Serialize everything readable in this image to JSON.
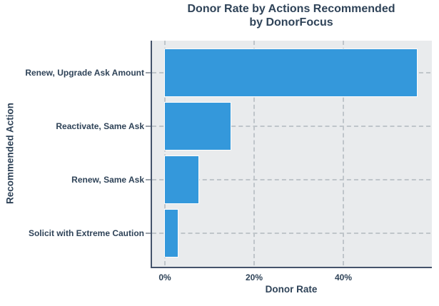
{
  "title": {
    "line1": "Donor Rate by Actions Recommended",
    "line2": "by DonorFocus"
  },
  "chart_data": {
    "type": "bar",
    "orientation": "horizontal",
    "title": "Donor Rate by Actions Recommended by DonorFocus",
    "xlabel": "Donor Rate",
    "ylabel": "Recommended Action",
    "categories": [
      "Renew, Upgrade Ask Amount",
      "Reactivate, Same Ask",
      "Renew, Same Ask",
      "Solicit with Extreme Caution"
    ],
    "values": [
      56.5,
      14.7,
      7.5,
      2.9
    ],
    "unit": "%",
    "x_ticks": [
      {
        "value": 0,
        "label": "0%"
      },
      {
        "value": 20,
        "label": "20%"
      },
      {
        "value": 40,
        "label": "40%"
      }
    ],
    "xlim": [
      0,
      59.4
    ],
    "grid": "dashed",
    "legend": "none"
  },
  "colors": {
    "bar": "#3498db",
    "bar_border": "#fdfdfd",
    "text": "#2f4358",
    "panel_background": "#e9ebed",
    "gridline": "#bfc5ca",
    "axis_line": "#45536b",
    "tick_mark": "#9aa1a9",
    "canvas_background": "#ffffff"
  }
}
